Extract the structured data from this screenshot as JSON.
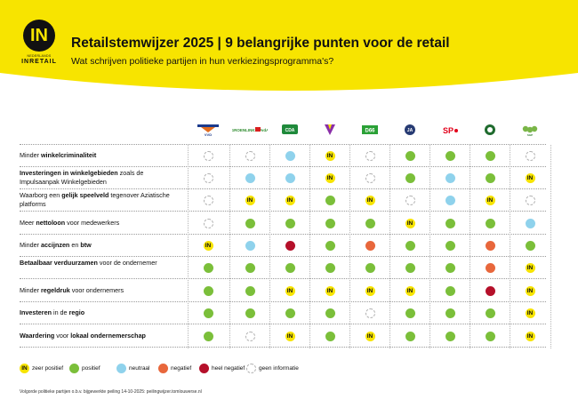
{
  "brand": {
    "logo_letters": "IN",
    "logo_sub": "NEDERLANDS",
    "logo_name": "INRETAIL",
    "accent": "#f7e400"
  },
  "title": "Retailstemwijzer 2025 | 9 belangrijke punten voor de retail",
  "subtitle": "Wat schrijven politieke partijen in hun verkiezingsprogramma's?",
  "parties": [
    {
      "icon": "vvd-logo-icon",
      "label": "VVD"
    },
    {
      "icon": "groenlinks-pvda-logo-icon",
      "label": "GROENLINKS PvdA"
    },
    {
      "icon": "cda-logo-icon",
      "label": "CDA"
    },
    {
      "icon": "bbb-logo-icon",
      "label": ""
    },
    {
      "icon": "d66-logo-icon",
      "label": "D66"
    },
    {
      "icon": "ja21-logo-icon",
      "label": "JA"
    },
    {
      "icon": "sp-logo-icon",
      "label": "SP"
    },
    {
      "icon": "pvdd-logo-icon",
      "label": ""
    },
    {
      "icon": "sgp-logo-icon",
      "label": "SGP"
    }
  ],
  "chart_data": {
    "type": "table",
    "title": "Retailstemwijzer 2025 | 9 belangrijke punten voor de retail",
    "subtitle": "Wat schrijven politieke partijen in hun verkiezingsprogramma's?",
    "rows": [
      {
        "parts": [
          {
            "t": "Minder ",
            "b": false
          },
          {
            "t": "winkelcriminaliteit",
            "b": true
          }
        ],
        "values": [
          "na",
          "na",
          "neu",
          "in",
          "na",
          "pos",
          "pos",
          "pos",
          "na"
        ]
      },
      {
        "parts": [
          {
            "t": "Investeringen in winkelgebieden",
            "b": true
          },
          {
            "t": " zoals de Impulsaanpak Winkelgebieden",
            "b": false
          }
        ],
        "values": [
          "na",
          "neu",
          "neu",
          "in",
          "na",
          "pos",
          "neu",
          "pos",
          "in"
        ]
      },
      {
        "parts": [
          {
            "t": "Waarborg een ",
            "b": false
          },
          {
            "t": "gelijk speelveld",
            "b": true
          },
          {
            "t": " tegenover Aziatische platforms",
            "b": false
          }
        ],
        "values": [
          "na",
          "in",
          "in",
          "pos",
          "in",
          "na",
          "neu",
          "in",
          "na"
        ]
      },
      {
        "parts": [
          {
            "t": "Meer ",
            "b": false
          },
          {
            "t": "nettoloon",
            "b": true
          },
          {
            "t": " voor medewerkers",
            "b": false
          }
        ],
        "values": [
          "na",
          "pos",
          "pos",
          "pos",
          "pos",
          "in",
          "pos",
          "pos",
          "neu"
        ]
      },
      {
        "parts": [
          {
            "t": "Minder ",
            "b": false
          },
          {
            "t": "accijnzen",
            "b": true
          },
          {
            "t": " en ",
            "b": false
          },
          {
            "t": "btw",
            "b": true
          }
        ],
        "values": [
          "in",
          "neu",
          "hneg",
          "pos",
          "neg",
          "pos",
          "pos",
          "neg",
          "pos"
        ]
      },
      {
        "parts": [
          {
            "t": "Betaalbaar verduurzamen",
            "b": true
          },
          {
            "t": " voor de ondernemer",
            "b": false
          }
        ],
        "values": [
          "pos",
          "pos",
          "pos",
          "pos",
          "pos",
          "pos",
          "pos",
          "neg",
          "in"
        ]
      },
      {
        "parts": [
          {
            "t": "Minder ",
            "b": false
          },
          {
            "t": "regeldruk",
            "b": true
          },
          {
            "t": " voor ondernemers",
            "b": false
          }
        ],
        "values": [
          "pos",
          "pos",
          "in",
          "in",
          "in",
          "in",
          "pos",
          "hneg",
          "in"
        ]
      },
      {
        "parts": [
          {
            "t": "Investeren",
            "b": true
          },
          {
            "t": " in de ",
            "b": false
          },
          {
            "t": "regio",
            "b": true
          }
        ],
        "values": [
          "pos",
          "pos",
          "pos",
          "pos",
          "na",
          "pos",
          "pos",
          "pos",
          "in"
        ]
      },
      {
        "parts": [
          {
            "t": "Waardering",
            "b": true
          },
          {
            "t": " voor ",
            "b": false
          },
          {
            "t": "lokaal ondernemerschap",
            "b": true
          }
        ],
        "values": [
          "pos",
          "na",
          "in",
          "pos",
          "in",
          "pos",
          "pos",
          "pos",
          "in"
        ]
      }
    ],
    "legend": [
      {
        "code": "in",
        "label": "zeer positief",
        "mark": "IN"
      },
      {
        "code": "pos",
        "label": "positief",
        "mark": ""
      },
      {
        "code": "neu",
        "label": "neutraal",
        "mark": ""
      },
      {
        "code": "neg",
        "label": "negatief",
        "mark": ""
      },
      {
        "code": "hneg",
        "label": "heel negatief",
        "mark": ""
      },
      {
        "code": "na",
        "label": "geen informatie",
        "mark": ""
      }
    ],
    "colors": {
      "in": "#f7e400",
      "pos": "#7bbf3a",
      "neu": "#8fd2ec",
      "neg": "#e8673c",
      "hneg": "#b5102a",
      "na": "#ffffff"
    }
  },
  "footnote": "Volgorde politieke partijen o.b.v. bijgewerkte peiling 14-10-2025: peilingwijzer.tomlouwerse.nl"
}
